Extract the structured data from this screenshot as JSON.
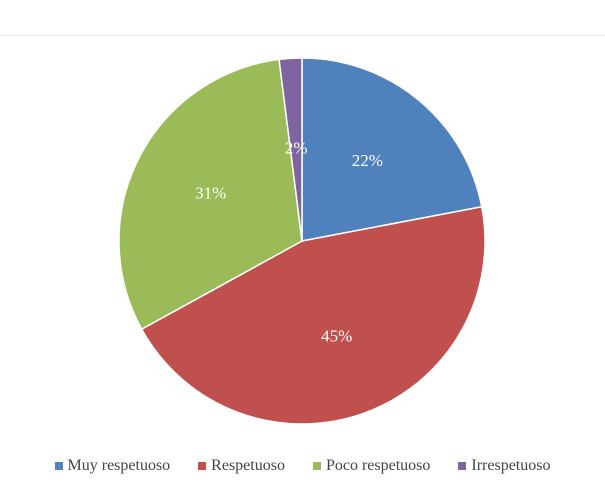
{
  "chart_data": {
    "type": "pie",
    "title": "",
    "legend_position": "bottom",
    "series": [
      {
        "categories": [
          "Muy respetuoso",
          "Respetuoso",
          "Poco respetuoso",
          "Irrespetuoso"
        ],
        "values": [
          22,
          45,
          31,
          2
        ],
        "labels": [
          "22%",
          "45%",
          "31%",
          "2%"
        ]
      }
    ],
    "colors": [
      "#4f81bd",
      "#c0504d",
      "#9bbb59",
      "#8064a2"
    ]
  }
}
